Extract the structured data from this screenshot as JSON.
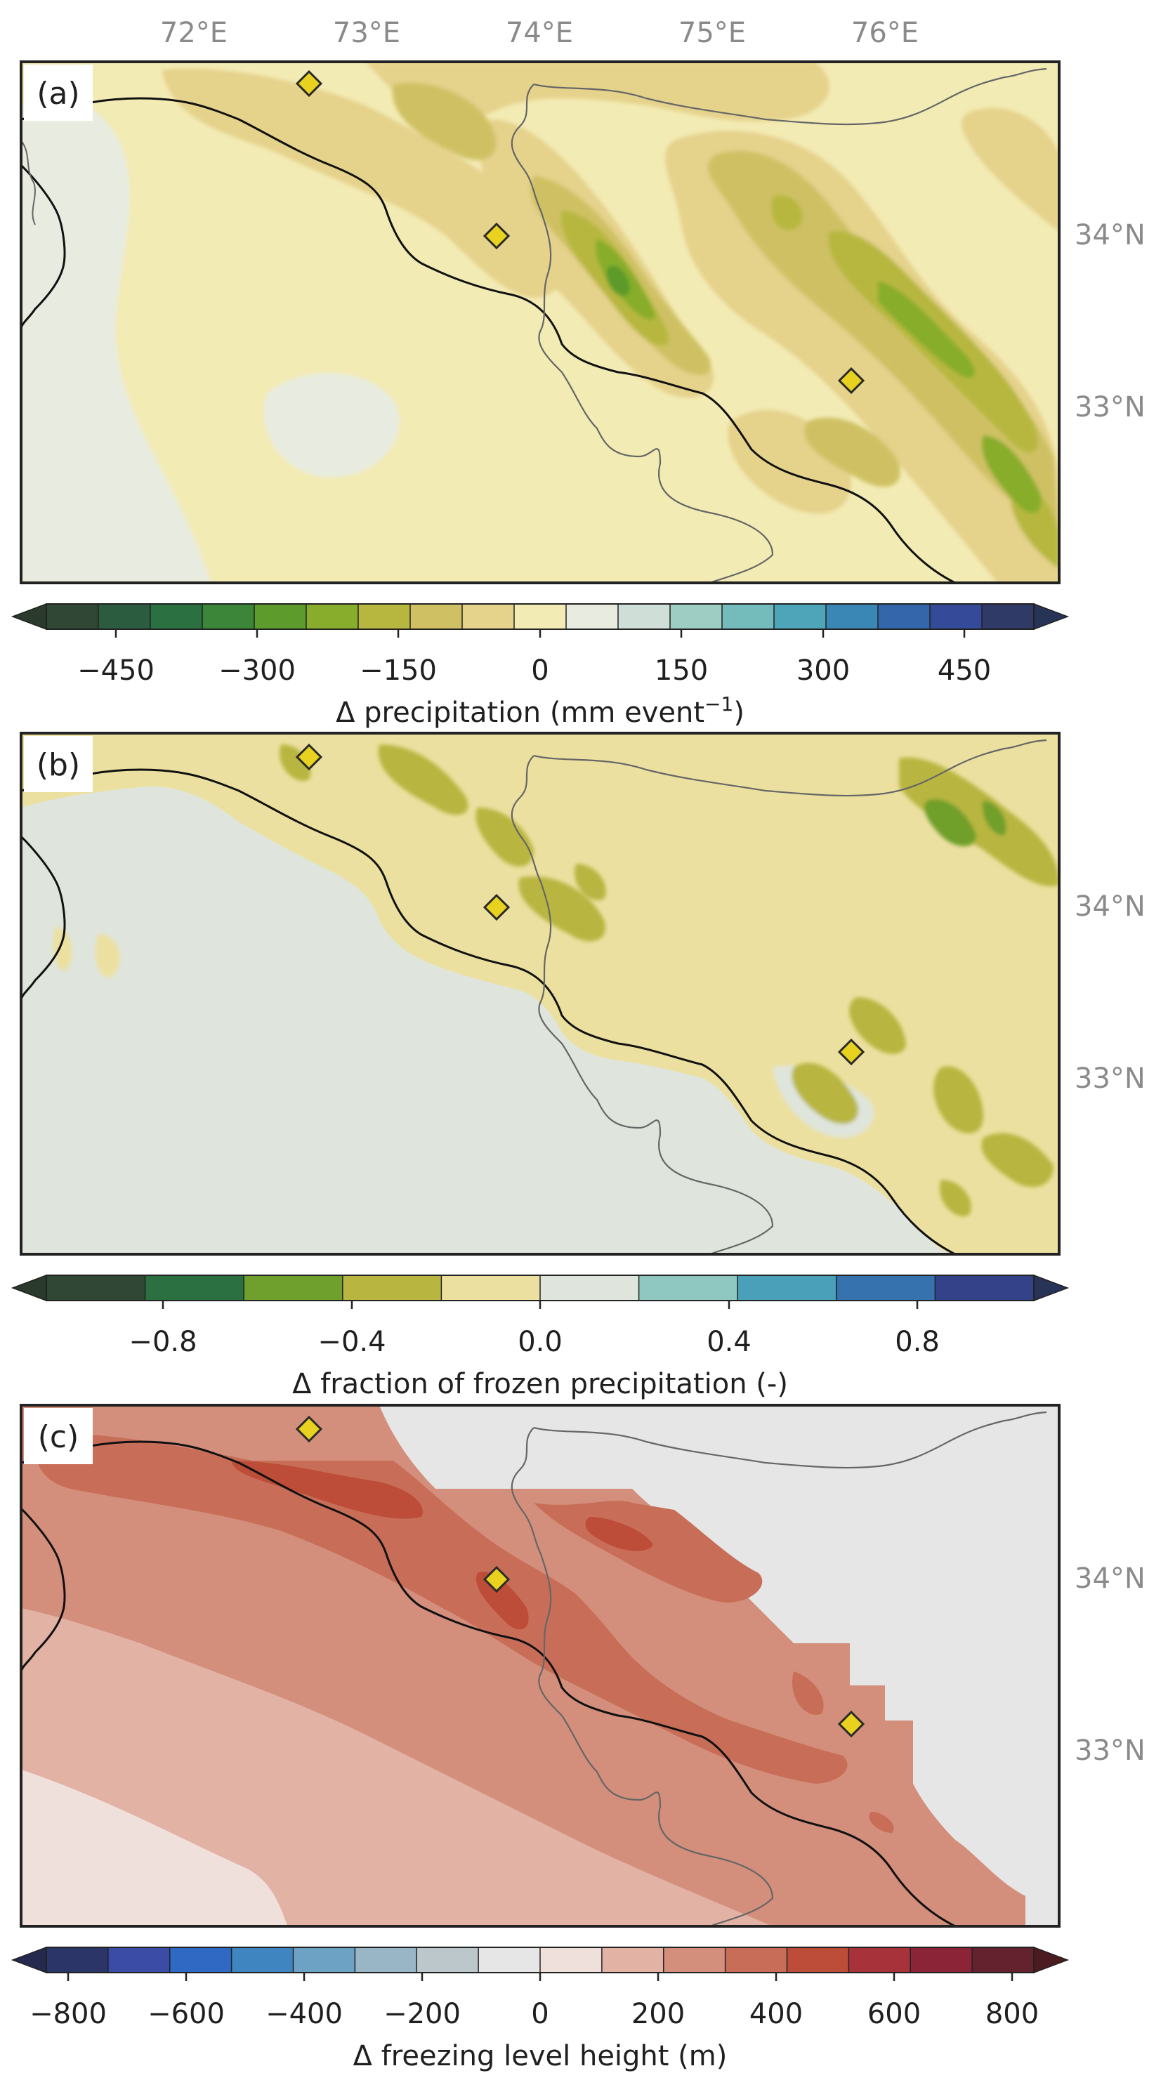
{
  "figure": {
    "top_axis_labels": [
      "72°E",
      "73°E",
      "74°E",
      "75°E",
      "76°E"
    ],
    "right_axis_labels": [
      "34°N",
      "33°N"
    ]
  },
  "panels": [
    {
      "id": "a",
      "label": "(a)",
      "colorbar": {
        "label_prefix": "Δ precipitation (mm event",
        "label_sup": "−1",
        "label_suffix": ")",
        "ticks": [
          "−450",
          "−300",
          "−150",
          "0",
          "150",
          "300",
          "450"
        ],
        "colors": [
          "#2f4734",
          "#2b5c3f",
          "#2b7040",
          "#3b8638",
          "#5c9b2c",
          "#88ad2c",
          "#b7b740",
          "#cfc163",
          "#e5d28b",
          "#f3ebb4",
          "#e8ece0",
          "#cfded6",
          "#9dcdc3",
          "#74bbbb",
          "#4ea4b8",
          "#3a86b4",
          "#3366aa",
          "#354a99",
          "#2f3a66"
        ],
        "arrow_low": "#2a3a2c",
        "arrow_high": "#283358"
      }
    },
    {
      "id": "b",
      "label": "(b)",
      "colorbar": {
        "label": "Δ fraction of frozen precipitation (-)",
        "ticks": [
          "−0.8",
          "−0.4",
          "0.0",
          "0.4",
          "0.8"
        ],
        "colors": [
          "#2f4734",
          "#2b7040",
          "#6f9f2c",
          "#b8b640",
          "#ece0a0",
          "#dfe5dc",
          "#8ec8c0",
          "#4aa0b8",
          "#3572ae",
          "#34428a"
        ],
        "arrow_low": "#2a3a2c",
        "arrow_high": "#283358"
      }
    },
    {
      "id": "c",
      "label": "(c)",
      "colorbar": {
        "label": "Δ freezing level height (m)",
        "ticks": [
          "−800",
          "−600",
          "−400",
          "−200",
          "0",
          "200",
          "400",
          "600",
          "800"
        ],
        "colors": [
          "#2b3568",
          "#3a4ca6",
          "#2f69c4",
          "#3f86c0",
          "#6ea2c4",
          "#98b6c6",
          "#bcc7cc",
          "#e6e6e6",
          "#f0e0dc",
          "#e2b2a4",
          "#d48e7c",
          "#c86e58",
          "#bd4d38",
          "#a8323a",
          "#8a2436",
          "#63222e"
        ],
        "arrow_low": "#24294d",
        "arrow_high": "#4c1b22"
      }
    }
  ],
  "marker_color": "#e8d21f"
}
